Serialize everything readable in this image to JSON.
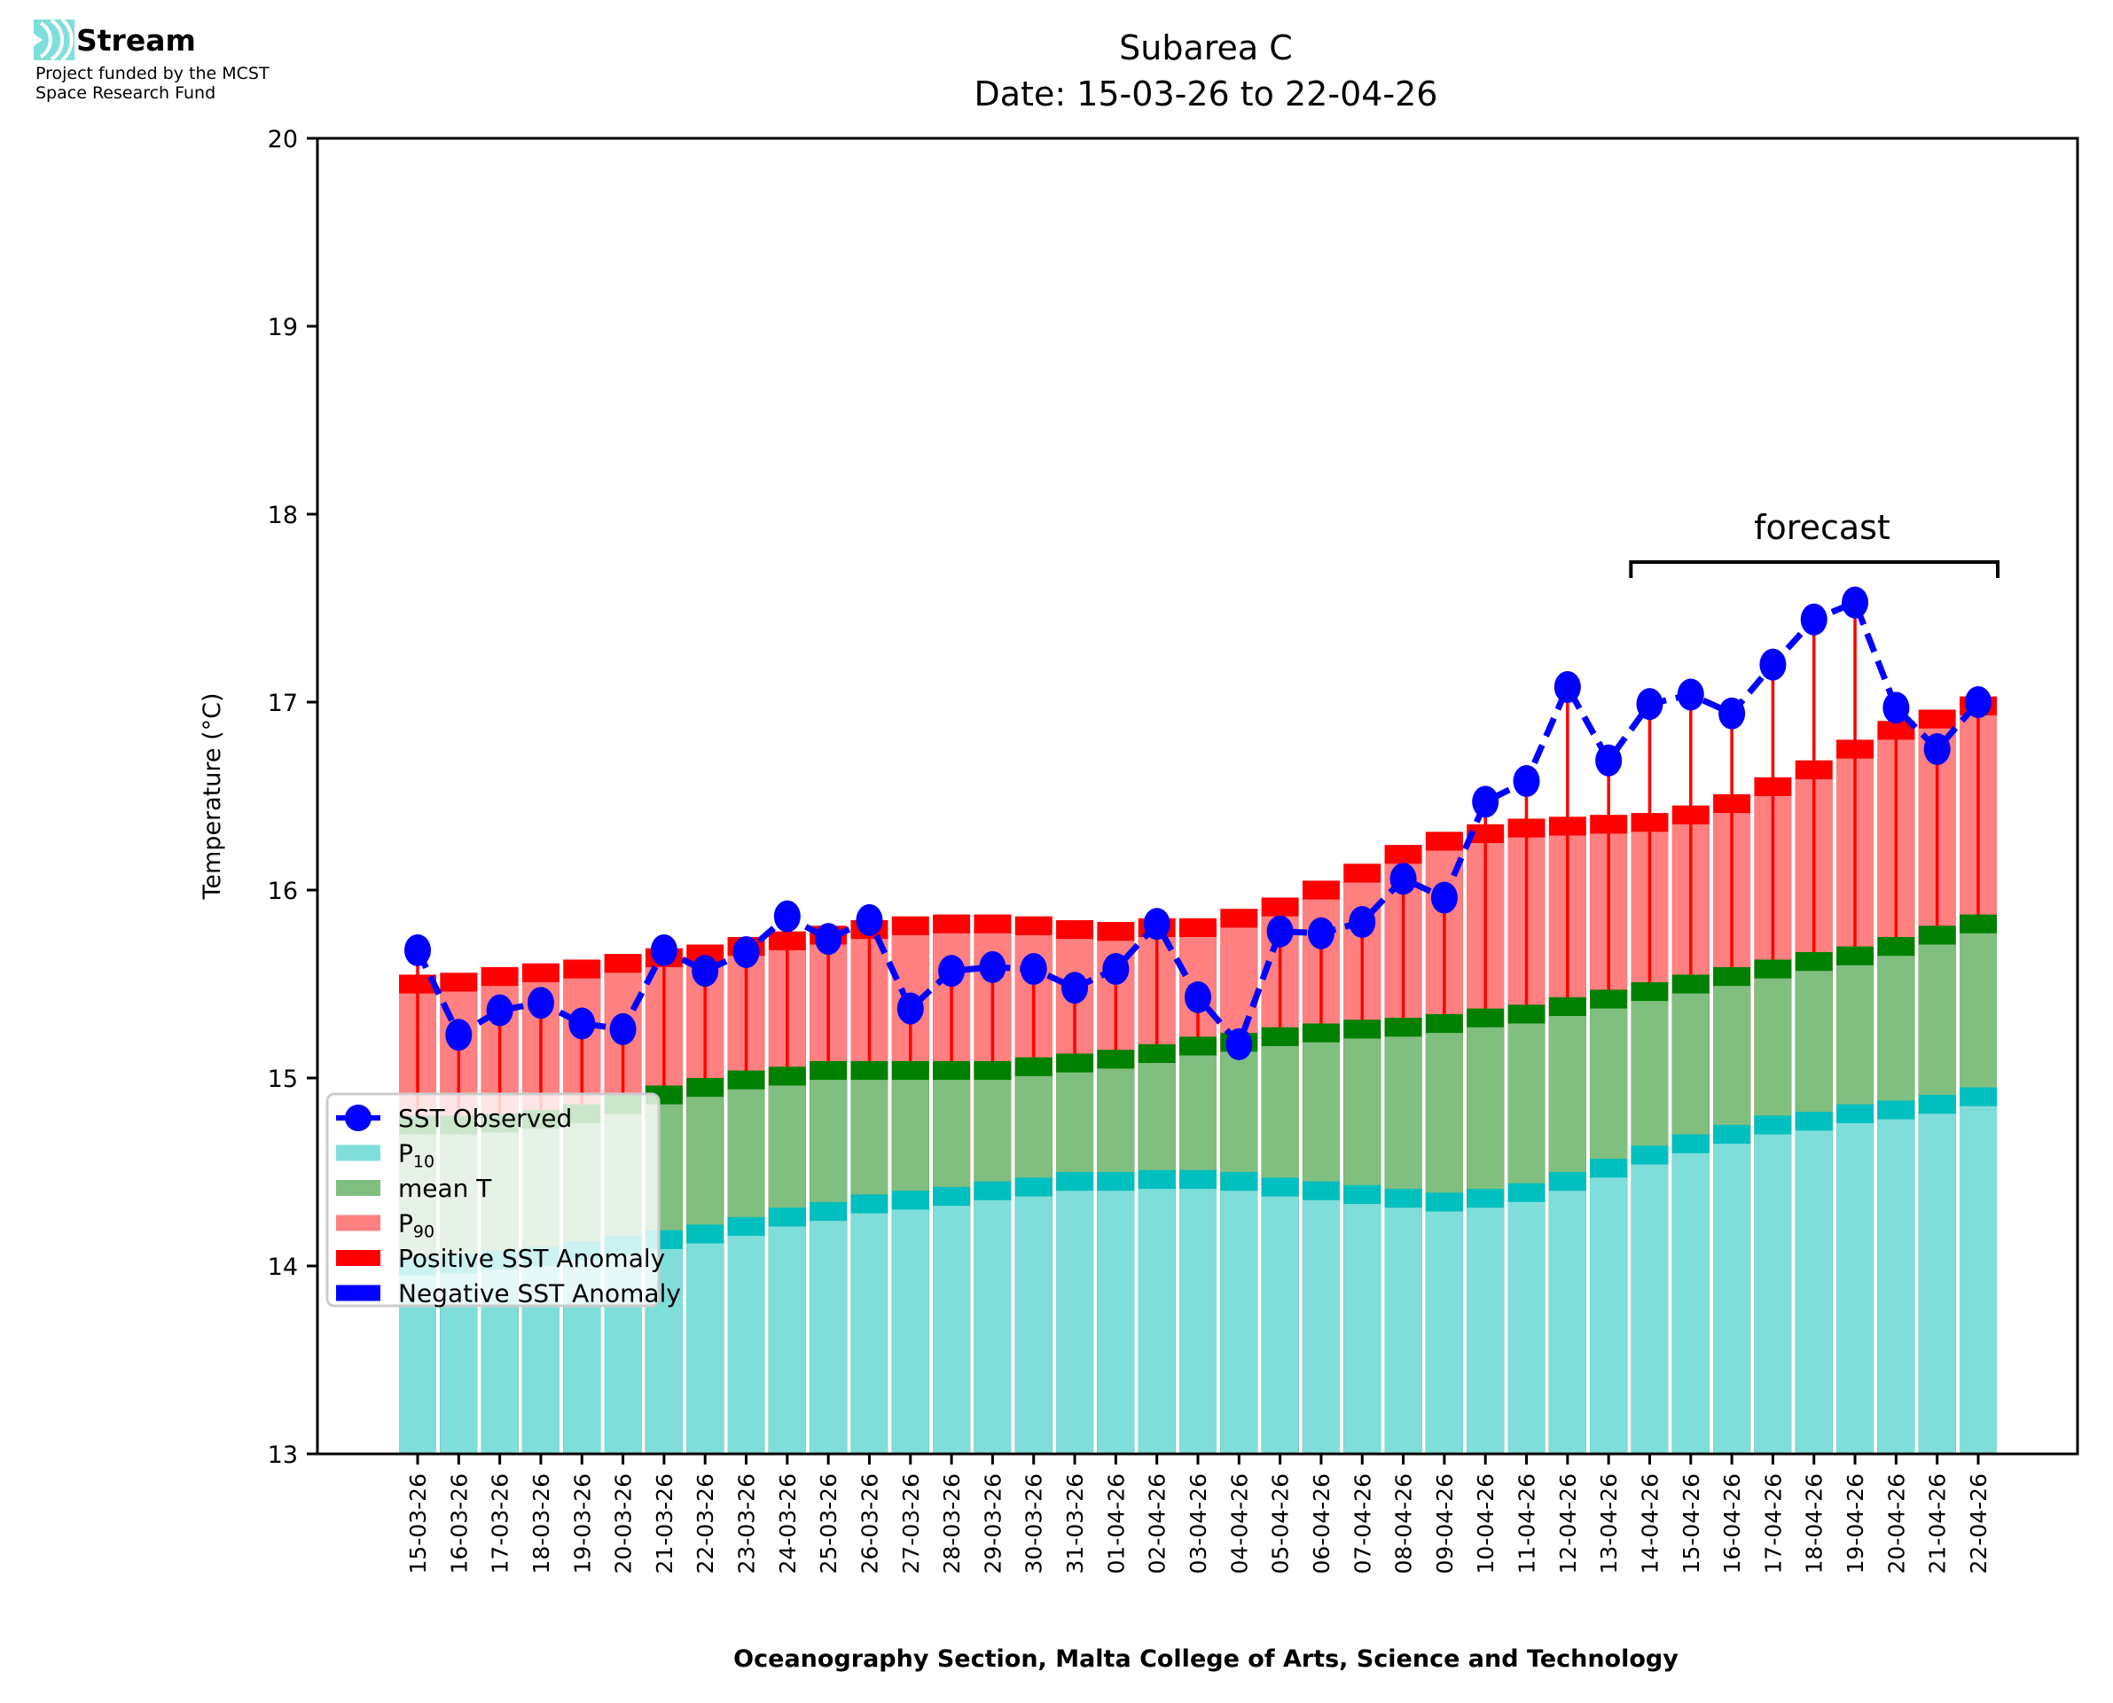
{
  "logo": {
    "name": "Stream",
    "subtitle_line1": "Project funded by the MCST",
    "subtitle_line2": "Space Research Fund"
  },
  "chart_data": {
    "type": "bar",
    "title": "Subarea C",
    "subtitle": "Date: 15-03-26 to 22-04-26",
    "xlabel": "Oceanography Section, Malta College of Arts, Science and Technology",
    "ylabel": "Temperature (°C)",
    "ylim": [
      13,
      20
    ],
    "yticks": [
      13,
      14,
      15,
      16,
      17,
      18,
      19,
      20
    ],
    "grid": false,
    "legend_position": "lower-left",
    "band_width": 0.1,
    "annotation": {
      "text": "forecast",
      "start": "14-04-26",
      "end": "22-04-26"
    },
    "categories": [
      "15-03-26",
      "16-03-26",
      "17-03-26",
      "18-03-26",
      "19-03-26",
      "20-03-26",
      "21-03-26",
      "22-03-26",
      "23-03-26",
      "24-03-26",
      "25-03-26",
      "26-03-26",
      "27-03-26",
      "28-03-26",
      "29-03-26",
      "30-03-26",
      "31-03-26",
      "01-04-26",
      "02-04-26",
      "03-04-26",
      "04-04-26",
      "05-04-26",
      "06-04-26",
      "07-04-26",
      "08-04-26",
      "09-04-26",
      "10-04-26",
      "11-04-26",
      "12-04-26",
      "13-04-26",
      "14-04-26",
      "15-04-26",
      "16-04-26",
      "17-04-26",
      "18-04-26",
      "19-04-26",
      "20-04-26",
      "21-04-26",
      "22-04-26"
    ],
    "series": [
      {
        "name": "P10",
        "label_main": "P",
        "label_sub": "10",
        "color": "#80deda",
        "band_color": "#00bfbf",
        "values": [
          13.95,
          13.96,
          13.98,
          14.0,
          14.03,
          14.06,
          14.09,
          14.12,
          14.16,
          14.21,
          14.24,
          14.28,
          14.3,
          14.32,
          14.35,
          14.37,
          14.4,
          14.4,
          14.41,
          14.41,
          14.4,
          14.37,
          14.35,
          14.33,
          14.31,
          14.29,
          14.31,
          14.34,
          14.4,
          14.47,
          14.54,
          14.6,
          14.65,
          14.7,
          14.72,
          14.76,
          14.78,
          14.81,
          14.85
        ]
      },
      {
        "name": "mean T",
        "color": "#80bf80",
        "band_color": "#008000",
        "values": [
          14.7,
          14.7,
          14.71,
          14.73,
          14.76,
          14.81,
          14.86,
          14.9,
          14.94,
          14.96,
          14.99,
          14.99,
          14.99,
          14.99,
          14.99,
          15.01,
          15.03,
          15.05,
          15.08,
          15.12,
          15.14,
          15.17,
          15.19,
          15.21,
          15.22,
          15.24,
          15.27,
          15.29,
          15.33,
          15.37,
          15.41,
          15.45,
          15.49,
          15.53,
          15.57,
          15.6,
          15.65,
          15.71,
          15.77
        ]
      },
      {
        "name": "P90",
        "label_main": "P",
        "label_sub": "90",
        "color": "#ff8080",
        "band_color": "#ff0000",
        "values": [
          15.45,
          15.46,
          15.49,
          15.51,
          15.53,
          15.56,
          15.59,
          15.61,
          15.65,
          15.68,
          15.71,
          15.74,
          15.76,
          15.77,
          15.77,
          15.76,
          15.74,
          15.73,
          15.75,
          15.75,
          15.8,
          15.86,
          15.95,
          16.04,
          16.14,
          16.21,
          16.25,
          16.28,
          16.29,
          16.3,
          16.31,
          16.35,
          16.41,
          16.5,
          16.59,
          16.7,
          16.8,
          16.86,
          16.93
        ]
      },
      {
        "name": "SST Observed",
        "color": "#0000ff",
        "style": "dashed-line-with-markers",
        "values": [
          15.68,
          15.23,
          15.36,
          15.4,
          15.29,
          15.26,
          15.68,
          15.57,
          15.67,
          15.86,
          15.74,
          15.84,
          15.37,
          15.57,
          15.59,
          15.58,
          15.48,
          15.58,
          15.82,
          15.43,
          15.18,
          15.78,
          15.77,
          15.83,
          16.06,
          15.96,
          16.47,
          16.58,
          17.08,
          16.69,
          16.99,
          17.04,
          16.94,
          17.2,
          17.44,
          17.53,
          16.97,
          16.75,
          17.0
        ]
      }
    ],
    "legend": [
      {
        "label": "SST Observed",
        "kind": "line-marker",
        "color": "#0000ff"
      },
      {
        "label": "P",
        "sub": "10",
        "kind": "patch",
        "color": "#80deda"
      },
      {
        "label": "mean T",
        "kind": "patch",
        "color": "#80bf80"
      },
      {
        "label": "P",
        "sub": "90",
        "kind": "patch",
        "color": "#ff8080"
      },
      {
        "label": "Positive SST Anomaly",
        "kind": "patch",
        "color": "#ff0000"
      },
      {
        "label": "Negative SST Anomaly",
        "kind": "patch",
        "color": "#0000ff"
      }
    ]
  }
}
